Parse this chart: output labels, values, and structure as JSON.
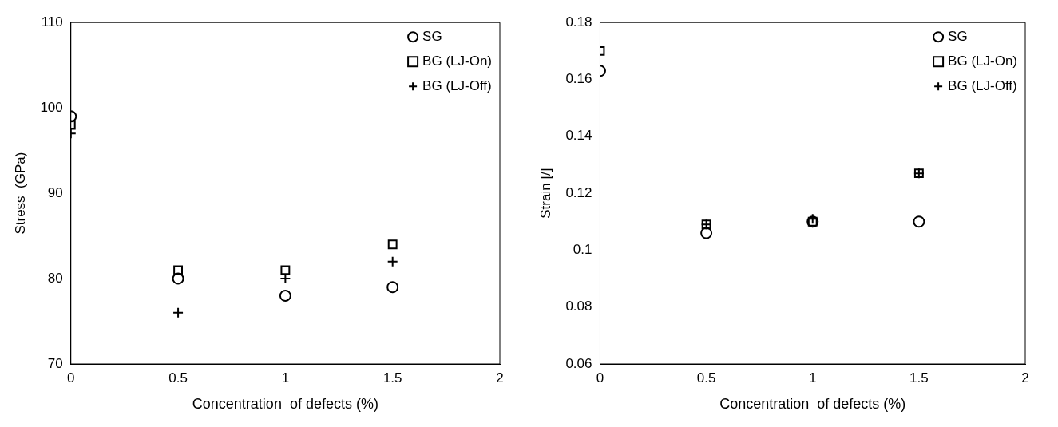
{
  "chart_data": [
    {
      "type": "scatter",
      "xlabel": "Concentration  of defects (%)",
      "ylabel": "Stress  (GPa)",
      "x": [
        0,
        0.5,
        1,
        1.5
      ],
      "xlim": [
        0,
        2
      ],
      "xticks": [
        0,
        0.5,
        1,
        1.5,
        2
      ],
      "ylim": [
        70,
        110
      ],
      "yticks": [
        70,
        80,
        90,
        100,
        110
      ],
      "legend": "top right",
      "grid": false,
      "series": [
        {
          "name": "SG",
          "color": "#000000",
          "marker": "circle",
          "values": [
            99,
            80,
            78,
            79
          ]
        },
        {
          "name": "BG (LJ-On)",
          "color": "#000000",
          "marker": "square",
          "values": [
            98,
            81,
            81,
            84
          ]
        },
        {
          "name": "BG (LJ-Off)",
          "color": "#000000",
          "marker": "cross",
          "values": [
            97,
            76,
            80,
            82
          ]
        }
      ]
    },
    {
      "type": "scatter",
      "xlabel": "Concentration  of defects (%)",
      "ylabel": "Strain [/]",
      "x": [
        0,
        0.5,
        1,
        1.5
      ],
      "xlim": [
        0,
        2
      ],
      "xticks": [
        0,
        0.5,
        1,
        1.5,
        2
      ],
      "ylim": [
        0.06,
        0.18
      ],
      "yticks": [
        0.06,
        0.08,
        {
          "value": 0.1,
          "label": "0.1"
        },
        0.12,
        0.14,
        0.16,
        0.18
      ],
      "legend": "top right",
      "grid": false,
      "series": [
        {
          "name": "SG",
          "color": "#000000",
          "marker": "circle",
          "values": [
            0.163,
            0.106,
            0.11,
            0.11
          ]
        },
        {
          "name": "BG (LJ-On)",
          "color": "#000000",
          "marker": "square",
          "values": [
            0.17,
            0.109,
            0.11,
            0.127
          ]
        },
        {
          "name": "BG (LJ-Off)",
          "color": "#000000",
          "marker": "cross",
          "values": [
            null,
            0.109,
            0.111,
            0.127
          ]
        }
      ]
    }
  ]
}
